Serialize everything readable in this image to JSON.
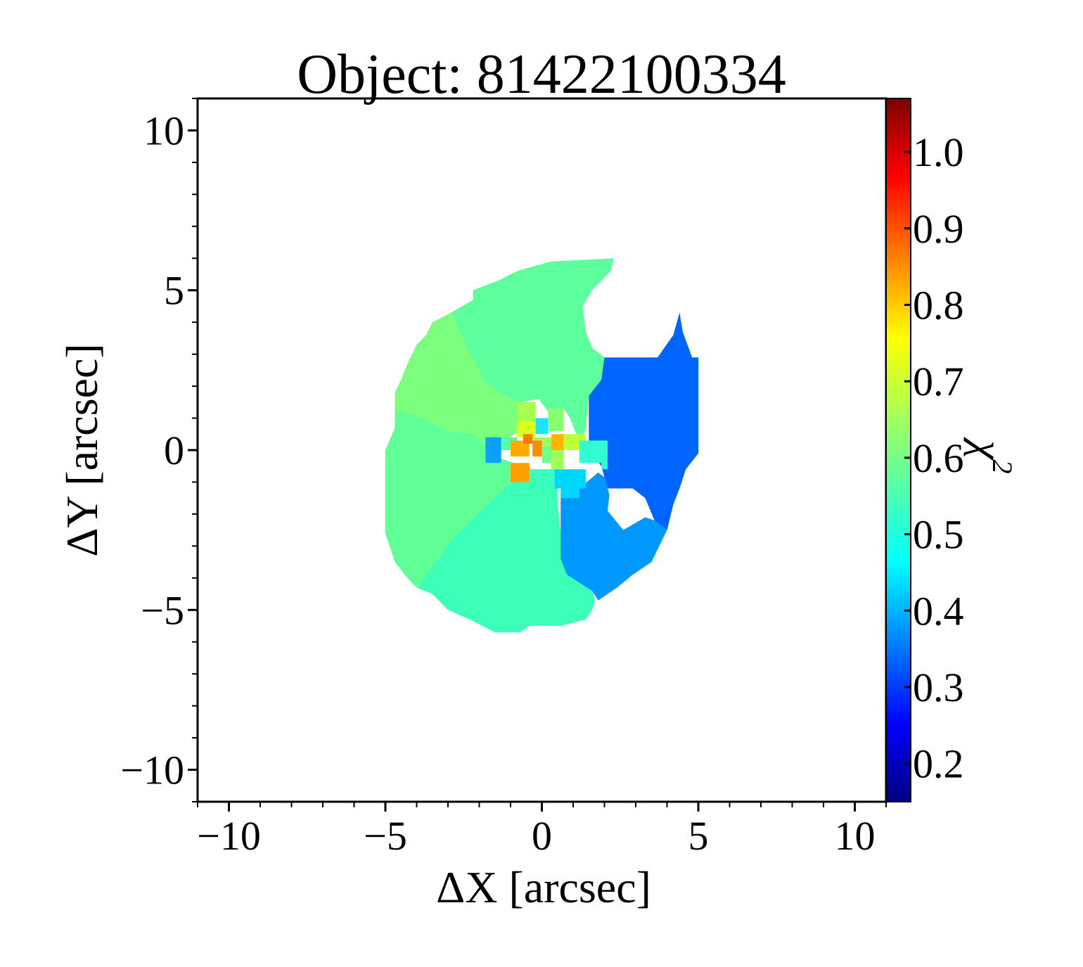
{
  "chart_data": {
    "type": "heatmap",
    "title": "Object: 81422100334",
    "xlabel": "ΔX [arcsec]",
    "ylabel": "ΔY [arcsec]",
    "xlim": [
      -11,
      11
    ],
    "ylim": [
      -11,
      11
    ],
    "x_ticks": [
      -10,
      -5,
      0,
      5,
      10
    ],
    "y_ticks": [
      -10,
      -5,
      0,
      5,
      10
    ],
    "x_tick_labels": [
      "−10",
      "−5",
      "0",
      "5",
      "10"
    ],
    "y_tick_labels": [
      "−10",
      "−5",
      "0",
      "5",
      "10"
    ],
    "grid": false,
    "colorbar": {
      "label": "χ",
      "label_superscript": "2",
      "colormap": "jet",
      "range": [
        0.15,
        1.07
      ],
      "ticks": [
        0.2,
        0.3,
        0.4,
        0.5,
        0.6,
        0.7,
        0.8,
        0.9,
        1.0
      ],
      "tick_labels": [
        "0.2",
        "0.3",
        "0.4",
        "0.5",
        "0.6",
        "0.7",
        "0.8",
        "0.9",
        "1.0"
      ]
    },
    "regions": [
      {
        "name": "north",
        "value": 0.57,
        "color": "#5cff9c",
        "polygon": [
          [
            -2.9,
            4.3
          ],
          [
            -2.2,
            4.7
          ],
          [
            -2.2,
            5.0
          ],
          [
            -1.4,
            5.3
          ],
          [
            -0.8,
            5.6
          ],
          [
            0.3,
            5.9
          ],
          [
            2.3,
            6.0
          ],
          [
            2.2,
            5.6
          ],
          [
            1.9,
            5.3
          ],
          [
            1.6,
            5.0
          ],
          [
            1.3,
            4.5
          ],
          [
            1.4,
            3.7
          ],
          [
            1.6,
            3.2
          ],
          [
            2.0,
            2.9
          ],
          [
            1.9,
            2.2
          ],
          [
            1.5,
            1.7
          ],
          [
            1.4,
            0.7
          ],
          [
            1.3,
            0.4
          ],
          [
            1.1,
            0.5
          ],
          [
            0.9,
            1.0
          ],
          [
            0.7,
            1.3
          ],
          [
            0.2,
            1.2
          ],
          [
            -0.1,
            1.6
          ],
          [
            -0.7,
            1.5
          ],
          [
            -1.2,
            1.7
          ],
          [
            -1.8,
            2.1
          ],
          [
            -2.4,
            3.2
          ]
        ]
      },
      {
        "name": "north-west",
        "value": 0.63,
        "color": "#7cff7c",
        "polygon": [
          [
            -4.4,
            1.2
          ],
          [
            -3.8,
            1.0
          ],
          [
            -3.0,
            0.6
          ],
          [
            -2.2,
            0.5
          ],
          [
            -1.8,
            0.2
          ],
          [
            -1.2,
            0.3
          ],
          [
            -0.7,
            0.6
          ],
          [
            -0.7,
            1.5
          ],
          [
            -1.2,
            1.7
          ],
          [
            -1.8,
            2.1
          ],
          [
            -2.4,
            3.2
          ],
          [
            -2.9,
            4.3
          ],
          [
            -3.5,
            4.0
          ],
          [
            -3.7,
            3.6
          ],
          [
            -4.0,
            3.3
          ],
          [
            -4.3,
            2.7
          ],
          [
            -4.5,
            2.2
          ],
          [
            -4.7,
            1.8
          ],
          [
            -4.7,
            1.2
          ]
        ]
      },
      {
        "name": "west",
        "value": 0.59,
        "color": "#60ff96",
        "polygon": [
          [
            -5.0,
            0.0
          ],
          [
            -5.0,
            -2.6
          ],
          [
            -4.7,
            -3.5
          ],
          [
            -4.3,
            -4.0
          ],
          [
            -4.0,
            -4.3
          ],
          [
            -2.7,
            -2.6
          ],
          [
            -1.2,
            -1.2
          ],
          [
            -0.5,
            -0.6
          ],
          [
            -0.9,
            -0.4
          ],
          [
            -1.8,
            -0.1
          ],
          [
            -1.8,
            0.2
          ],
          [
            -2.2,
            0.5
          ],
          [
            -3.0,
            0.6
          ],
          [
            -3.8,
            1.0
          ],
          [
            -4.4,
            1.2
          ],
          [
            -4.7,
            1.2
          ],
          [
            -4.7,
            0.7
          ]
        ]
      },
      {
        "name": "south",
        "value": 0.55,
        "color": "#3cffb8",
        "polygon": [
          [
            -4.0,
            -4.3
          ],
          [
            -3.5,
            -4.5
          ],
          [
            -3.0,
            -5.0
          ],
          [
            -2.3,
            -5.3
          ],
          [
            -1.5,
            -5.7
          ],
          [
            -0.7,
            -5.7
          ],
          [
            -0.4,
            -5.5
          ],
          [
            0.6,
            -5.5
          ],
          [
            1.4,
            -5.3
          ],
          [
            1.6,
            -5.0
          ],
          [
            1.7,
            -4.7
          ],
          [
            1.6,
            -4.4
          ],
          [
            0.8,
            -3.9
          ],
          [
            0.6,
            -3.4
          ],
          [
            0.6,
            -2.6
          ],
          [
            0.5,
            -1.6
          ],
          [
            0.5,
            -1.2
          ],
          [
            -0.2,
            -1.0
          ],
          [
            -0.5,
            -0.6
          ],
          [
            -1.2,
            -1.2
          ],
          [
            -2.7,
            -2.6
          ]
        ]
      },
      {
        "name": "south-east",
        "value": 0.4,
        "color": "#0098ff",
        "polygon": [
          [
            0.6,
            -1.5
          ],
          [
            1.2,
            -1.2
          ],
          [
            1.8,
            -0.7
          ],
          [
            2.2,
            -1.0
          ],
          [
            2.1,
            -1.9
          ],
          [
            2.6,
            -2.5
          ],
          [
            3.3,
            -2.1
          ],
          [
            3.6,
            -2.2
          ],
          [
            4.0,
            -2.5
          ],
          [
            3.5,
            -3.5
          ],
          [
            2.9,
            -3.9
          ],
          [
            2.4,
            -4.3
          ],
          [
            1.8,
            -4.7
          ],
          [
            1.6,
            -4.4
          ],
          [
            0.8,
            -3.9
          ],
          [
            0.6,
            -3.4
          ],
          [
            0.6,
            -2.6
          ]
        ]
      },
      {
        "name": "east",
        "value": 0.35,
        "color": "#0064ff",
        "polygon": [
          [
            1.5,
            0.0
          ],
          [
            1.5,
            1.7
          ],
          [
            1.9,
            2.2
          ],
          [
            2.0,
            2.9
          ],
          [
            3.2,
            2.9
          ],
          [
            3.7,
            2.9
          ],
          [
            4.2,
            3.6
          ],
          [
            4.4,
            4.3
          ],
          [
            4.5,
            3.7
          ],
          [
            4.8,
            2.9
          ],
          [
            5.0,
            2.9
          ],
          [
            5.0,
            -0.1
          ],
          [
            4.6,
            -0.6
          ],
          [
            4.4,
            -1.2
          ],
          [
            4.2,
            -1.7
          ],
          [
            4.0,
            -2.5
          ],
          [
            3.6,
            -2.2
          ],
          [
            3.3,
            -1.5
          ],
          [
            2.9,
            -1.2
          ],
          [
            2.1,
            -1.2
          ],
          [
            1.9,
            -0.5
          ]
        ]
      },
      {
        "name": "east-hole",
        "value": null,
        "color": "#ffffff",
        "polygon": [
          [
            2.1,
            -1.2
          ],
          [
            2.9,
            -1.2
          ],
          [
            3.3,
            -1.5
          ],
          [
            3.3,
            -2.1
          ],
          [
            2.6,
            -2.5
          ],
          [
            2.3,
            -1.9
          ]
        ]
      },
      {
        "name": "center-cell-1",
        "value": 0.66,
        "color": "#a8ff4e",
        "polygon": [
          [
            -0.8,
            1.5
          ],
          [
            -0.2,
            1.5
          ],
          [
            -0.2,
            0.9
          ],
          [
            -0.8,
            0.9
          ]
        ]
      },
      {
        "name": "center-cell-2",
        "value": 0.62,
        "color": "#88ff6e",
        "polygon": [
          [
            0.2,
            1.3
          ],
          [
            0.7,
            1.3
          ],
          [
            0.7,
            0.6
          ],
          [
            0.2,
            0.6
          ]
        ]
      },
      {
        "name": "center-cell-3",
        "value": 0.72,
        "color": "#d8ff1e",
        "polygon": [
          [
            -0.8,
            0.9
          ],
          [
            -0.2,
            0.9
          ],
          [
            -0.2,
            0.4
          ],
          [
            -0.8,
            0.4
          ]
        ]
      },
      {
        "name": "center-cell-4",
        "value": 0.5,
        "color": "#1ee4ff",
        "polygon": [
          [
            -0.2,
            1.0
          ],
          [
            0.2,
            1.0
          ],
          [
            0.2,
            0.5
          ],
          [
            -0.2,
            0.5
          ]
        ]
      },
      {
        "name": "center-cell-5",
        "value": 0.55,
        "color": "#52ffa6",
        "polygon": [
          [
            -1.3,
            0.4
          ],
          [
            -0.8,
            0.4
          ],
          [
            -0.8,
            0.0
          ],
          [
            -1.3,
            0.0
          ]
        ]
      },
      {
        "name": "center-cell-6",
        "value": 0.64,
        "color": "#9cff5a",
        "polygon": [
          [
            -0.3,
            0.4
          ],
          [
            0.5,
            0.4
          ],
          [
            0.5,
            0.0
          ],
          [
            -0.3,
            0.0
          ]
        ]
      },
      {
        "name": "center-cell-7",
        "value": 0.4,
        "color": "#0aa0ff",
        "polygon": [
          [
            -1.8,
            0.4
          ],
          [
            -1.3,
            0.4
          ],
          [
            -1.3,
            -0.4
          ],
          [
            -1.8,
            -0.4
          ]
        ]
      },
      {
        "name": "center-cell-8",
        "value": 0.84,
        "color": "#ffaa00",
        "polygon": [
          [
            -1.0,
            0.3
          ],
          [
            -0.4,
            0.3
          ],
          [
            -0.4,
            -0.2
          ],
          [
            -1.0,
            -0.2
          ]
        ]
      },
      {
        "name": "center-cell-9",
        "value": 0.89,
        "color": "#ff7a00",
        "polygon": [
          [
            -0.6,
            0.5
          ],
          [
            -0.3,
            0.5
          ],
          [
            -0.3,
            0.2
          ],
          [
            -0.6,
            0.2
          ]
        ]
      },
      {
        "name": "center-cell-10",
        "value": 0.86,
        "color": "#ff8c00",
        "polygon": [
          [
            -0.3,
            0.3
          ],
          [
            0.0,
            0.3
          ],
          [
            0.0,
            -0.2
          ],
          [
            -0.3,
            -0.2
          ]
        ]
      },
      {
        "name": "center-cell-11",
        "value": 0.82,
        "color": "#ffb400",
        "polygon": [
          [
            0.3,
            0.5
          ],
          [
            0.7,
            0.5
          ],
          [
            0.7,
            0.0
          ],
          [
            0.3,
            0.0
          ]
        ]
      },
      {
        "name": "center-cell-12",
        "value": 0.68,
        "color": "#beff3a",
        "polygon": [
          [
            0.7,
            0.5
          ],
          [
            1.4,
            0.5
          ],
          [
            1.4,
            0.0
          ],
          [
            0.7,
            0.0
          ]
        ]
      },
      {
        "name": "center-cell-13",
        "value": 0.65,
        "color": "#a0ff56",
        "polygon": [
          [
            0.3,
            0.0
          ],
          [
            0.7,
            0.0
          ],
          [
            0.7,
            -0.6
          ],
          [
            0.3,
            -0.6
          ]
        ]
      },
      {
        "name": "center-cell-14",
        "value": 0.57,
        "color": "#6cff8a",
        "polygon": [
          [
            0.0,
            0.1
          ],
          [
            0.3,
            0.1
          ],
          [
            0.3,
            -0.4
          ],
          [
            0.0,
            -0.4
          ]
        ]
      },
      {
        "name": "center-cell-15",
        "value": 0.52,
        "color": "#30fcd0",
        "polygon": [
          [
            1.2,
            0.3
          ],
          [
            2.1,
            0.3
          ],
          [
            2.1,
            -0.6
          ],
          [
            1.9,
            -0.6
          ],
          [
            1.9,
            -0.4
          ],
          [
            1.2,
            -0.4
          ]
        ]
      },
      {
        "name": "center-cell-16",
        "value": 0.85,
        "color": "#ffa000",
        "polygon": [
          [
            -1.0,
            -0.4
          ],
          [
            -0.4,
            -0.4
          ],
          [
            -0.4,
            -1.0
          ],
          [
            -1.0,
            -1.0
          ]
        ]
      },
      {
        "name": "center-cell-17",
        "value": 0.53,
        "color": "#38ffbe",
        "polygon": [
          [
            -0.4,
            -0.6
          ],
          [
            0.4,
            -0.6
          ],
          [
            0.4,
            -1.2
          ],
          [
            -0.4,
            -1.2
          ]
        ]
      },
      {
        "name": "center-cell-18",
        "value": 0.48,
        "color": "#00d6ff",
        "polygon": [
          [
            0.4,
            -0.6
          ],
          [
            1.4,
            -0.6
          ],
          [
            1.4,
            -1.2
          ],
          [
            1.2,
            -1.2
          ],
          [
            1.2,
            -1.5
          ],
          [
            0.6,
            -1.5
          ],
          [
            0.6,
            -1.2
          ],
          [
            0.4,
            -1.2
          ]
        ]
      }
    ]
  }
}
